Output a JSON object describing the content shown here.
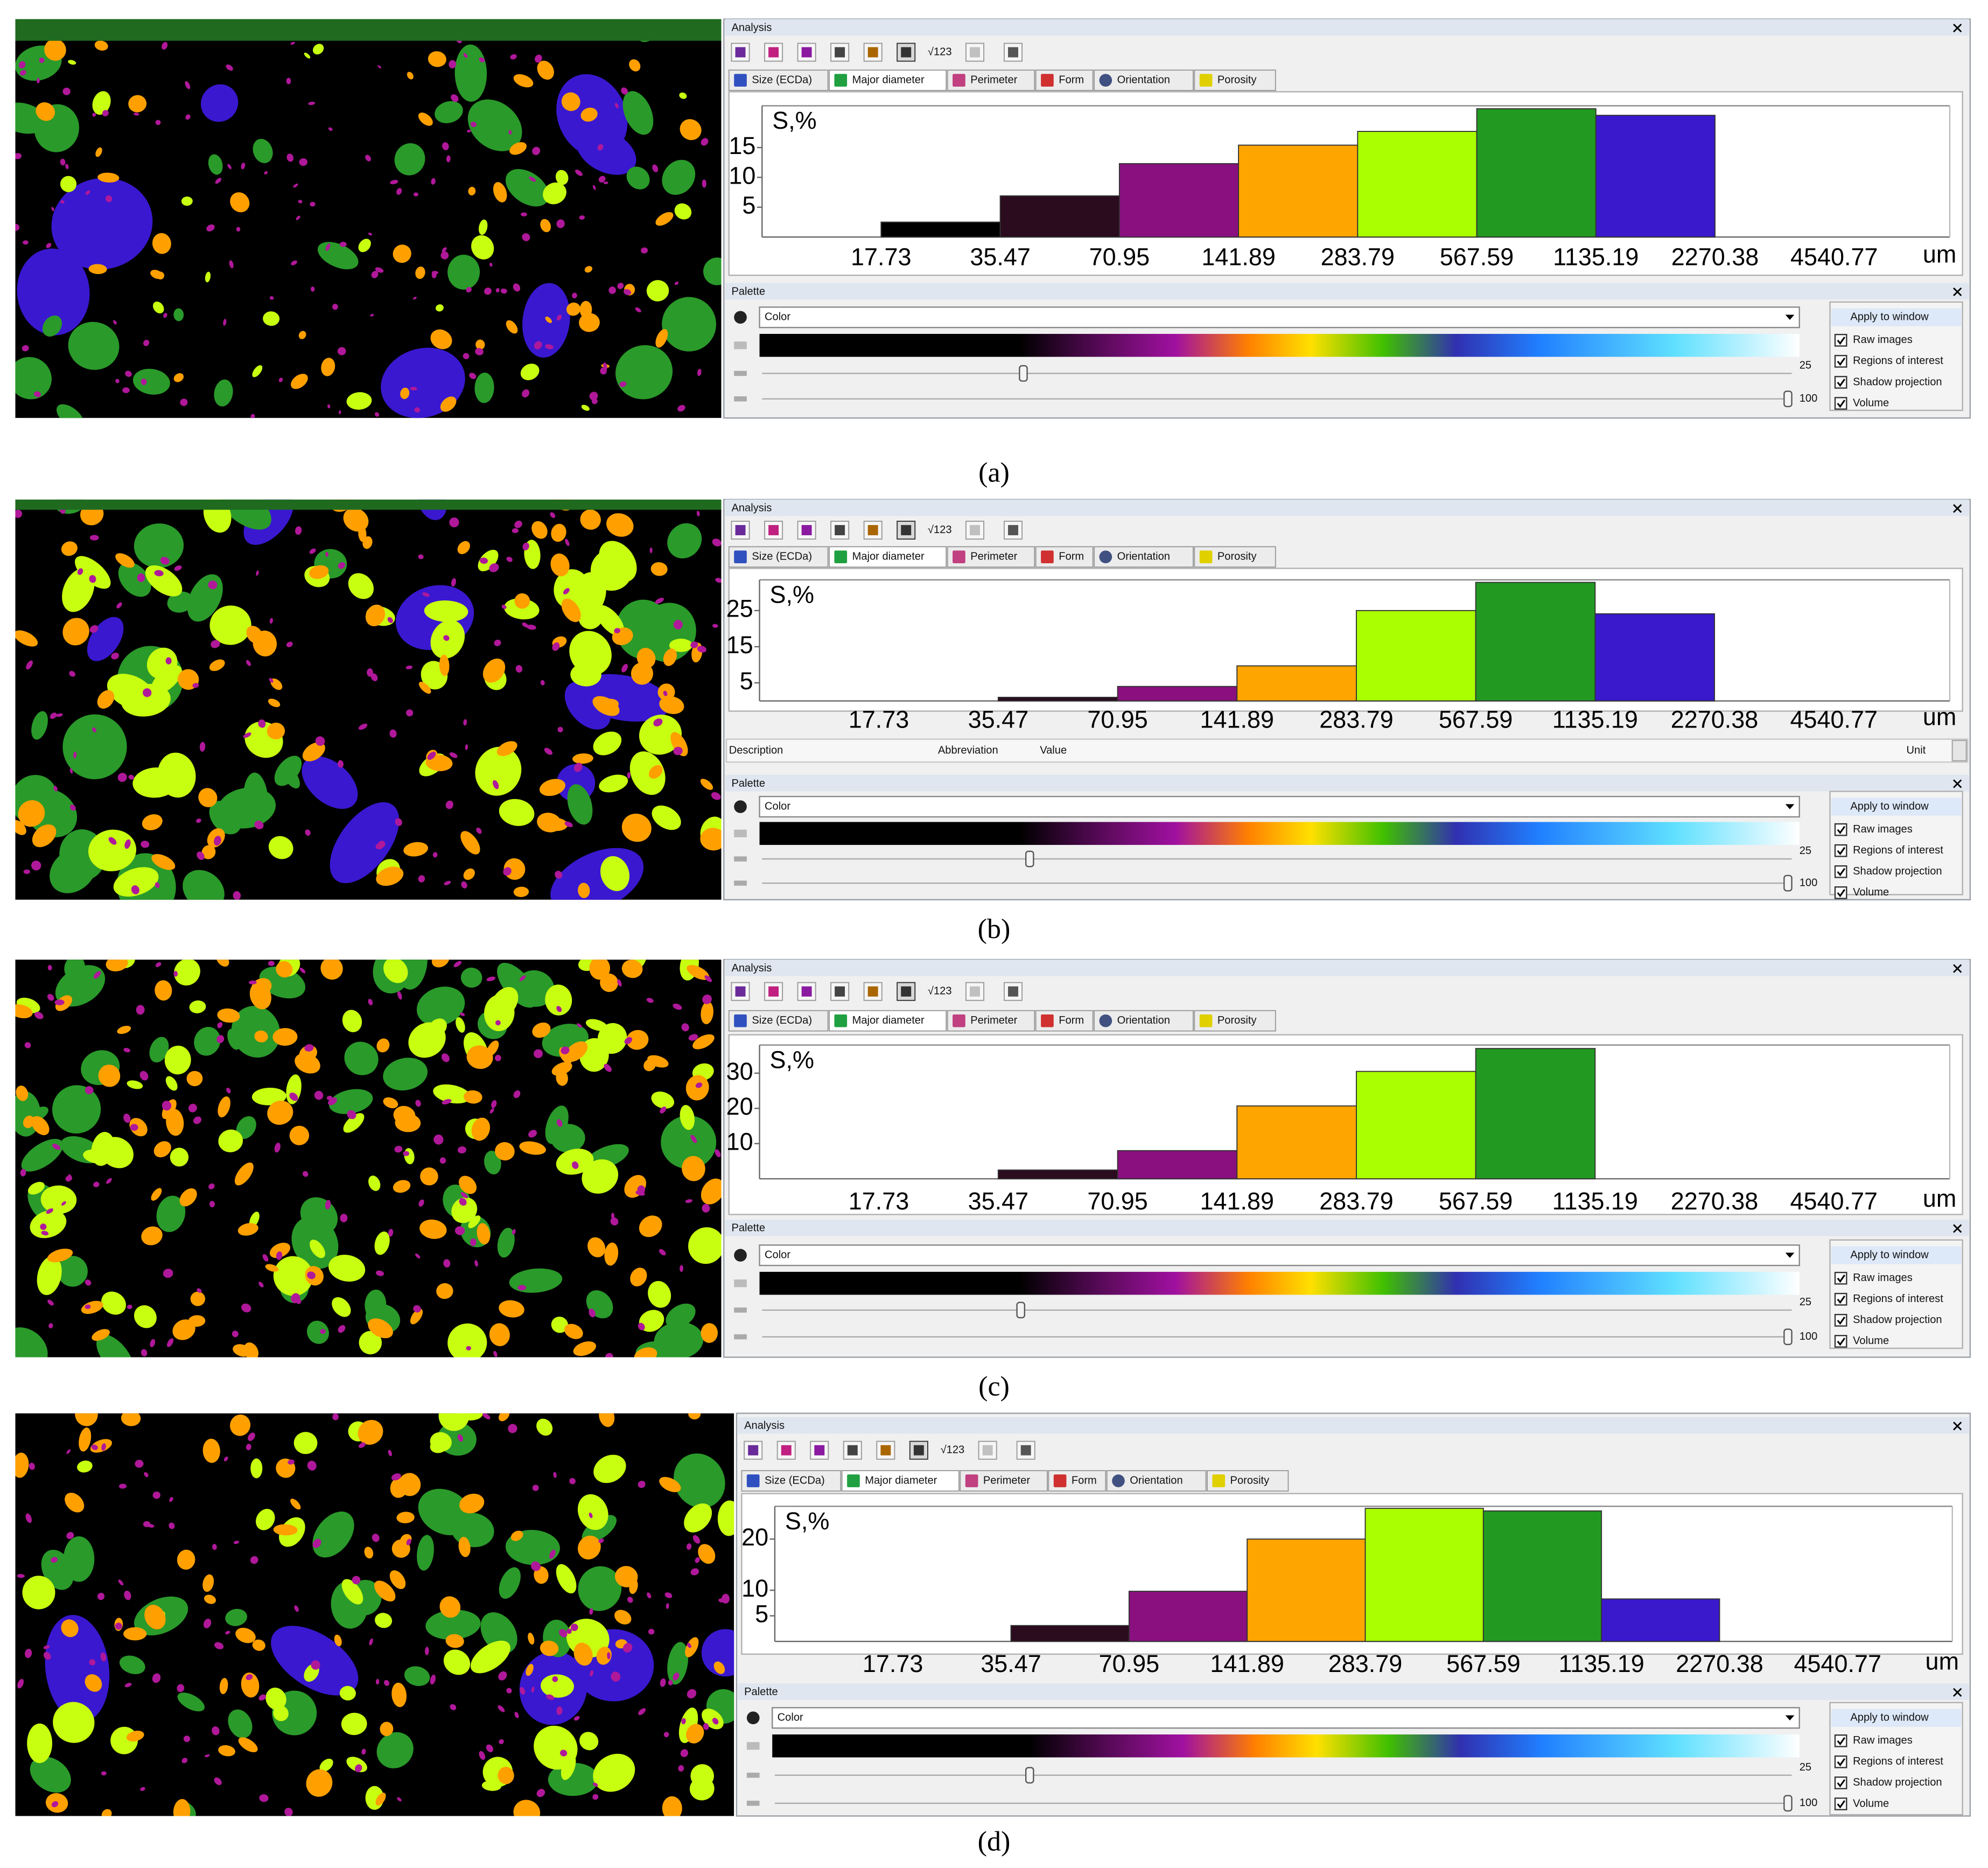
{
  "panels": [
    {
      "label": "(a)",
      "analysis": {
        "title": "Analysis",
        "toolbar_text": "√123",
        "tabs": [
          "Size (ECDa)",
          "Major diameter",
          "Perimeter",
          "Form",
          "Orientation",
          "Porosity"
        ]
      },
      "palette": {
        "title": "Palette",
        "mode": "Color",
        "slider_values": [
          25,
          100
        ],
        "apply_title": "Apply to window",
        "options": [
          "Raw images",
          "Regions of interest",
          "Shadow projection",
          "Volume"
        ]
      }
    },
    {
      "label": "(b)",
      "analysis": {
        "title": "Analysis",
        "toolbar_text": "√123",
        "tabs": [
          "Size (ECDa)",
          "Major diameter",
          "Perimeter",
          "Form",
          "Orientation",
          "Porosity"
        ],
        "table_header": [
          "Description",
          "Abbreviation",
          "Value",
          "Unit"
        ]
      },
      "palette": {
        "title": "Palette",
        "mode": "Color",
        "slider_values": [
          25,
          100
        ],
        "apply_title": "Apply to window",
        "options": [
          "Raw images",
          "Regions of interest",
          "Shadow projection",
          "Volume"
        ]
      }
    },
    {
      "label": "(c)",
      "analysis": {
        "title": "Analysis",
        "toolbar_text": "√123",
        "tabs": [
          "Size (ECDa)",
          "Major diameter",
          "Perimeter",
          "Form",
          "Orientation",
          "Porosity"
        ]
      },
      "palette": {
        "title": "Palette",
        "mode": "Color",
        "slider_values": [
          25,
          100
        ],
        "apply_title": "Apply to window",
        "options": [
          "Raw images",
          "Regions of interest",
          "Shadow projection",
          "Volume"
        ]
      }
    },
    {
      "label": "(d)",
      "analysis": {
        "title": "Analysis",
        "toolbar_text": "√123",
        "tabs": [
          "Size (ECDa)",
          "Major diameter",
          "Perimeter",
          "Form",
          "Orientation",
          "Porosity"
        ]
      },
      "palette": {
        "title": "Palette",
        "mode": "Color",
        "slider_values": [
          25,
          100
        ],
        "apply_title": "Apply to window",
        "options": [
          "Raw images",
          "Regions of interest",
          "Shadow projection",
          "Volume"
        ]
      }
    }
  ],
  "chart_data": [
    {
      "type": "histogram",
      "y_label": "S,%",
      "x_label": "um",
      "xscale": "log",
      "bins": [
        17.73,
        35.47,
        70.95,
        141.89,
        283.79,
        567.59,
        1135.19,
        2270.38,
        4540.77
      ],
      "values": [
        2.5,
        6.9,
        12.3,
        15.4,
        17.7,
        21.5,
        20.4,
        0
      ],
      "colors": [
        "#000000",
        "#2b0b1e",
        "#8a1080",
        "#ffa500",
        "#aaff00",
        "#229a22",
        "#3a18cc",
        "#7fffff"
      ],
      "xlim": [
        8.87,
        8900
      ],
      "ylim": [
        0,
        22
      ],
      "yticks": [
        5,
        10,
        15
      ]
    },
    {
      "type": "histogram",
      "y_label": "S,%",
      "x_label": "um",
      "xscale": "log",
      "bins": [
        17.73,
        35.47,
        70.95,
        141.89,
        283.79,
        567.59,
        1135.19,
        2270.38,
        4540.77
      ],
      "values": [
        0,
        1.0,
        4.0,
        9.7,
        25.0,
        32.8,
        24.1,
        0
      ],
      "colors": [
        "#000000",
        "#2b0b1e",
        "#8a1080",
        "#ffa500",
        "#aaff00",
        "#229a22",
        "#3a18cc",
        "#7fffff"
      ],
      "xlim": [
        8.87,
        8900
      ],
      "ylim": [
        0,
        33.5
      ],
      "yticks": [
        5,
        15,
        25
      ]
    },
    {
      "type": "histogram",
      "y_label": "S,%",
      "x_label": "um",
      "xscale": "log",
      "bins": [
        17.73,
        35.47,
        70.95,
        141.89,
        283.79,
        567.59,
        1135.19,
        2270.38,
        4540.77
      ],
      "values": [
        0,
        2.5,
        8,
        20.7,
        30.5,
        37,
        0,
        0
      ],
      "colors": [
        "#000000",
        "#2b0b1e",
        "#8a1080",
        "#ffa500",
        "#aaff00",
        "#229a22",
        "#3a18cc",
        "#7fffff"
      ],
      "xlim": [
        8.87,
        8900
      ],
      "ylim": [
        0,
        38
      ],
      "yticks": [
        10,
        20,
        30
      ]
    },
    {
      "type": "histogram",
      "y_label": "S,%",
      "x_label": "um",
      "xscale": "log",
      "bins": [
        17.73,
        35.47,
        70.95,
        141.89,
        283.79,
        567.59,
        1135.19,
        2270.38,
        4540.77
      ],
      "values": [
        0,
        3.1,
        9.8,
        20,
        26,
        25.5,
        8.3,
        0
      ],
      "colors": [
        "#000000",
        "#2b0b1e",
        "#8a1080",
        "#ffa500",
        "#aaff00",
        "#229a22",
        "#3a18cc",
        "#7fffff"
      ],
      "xlim": [
        8.87,
        8900
      ],
      "ylim": [
        0,
        26.4
      ],
      "yticks": [
        5,
        10,
        20
      ]
    }
  ]
}
